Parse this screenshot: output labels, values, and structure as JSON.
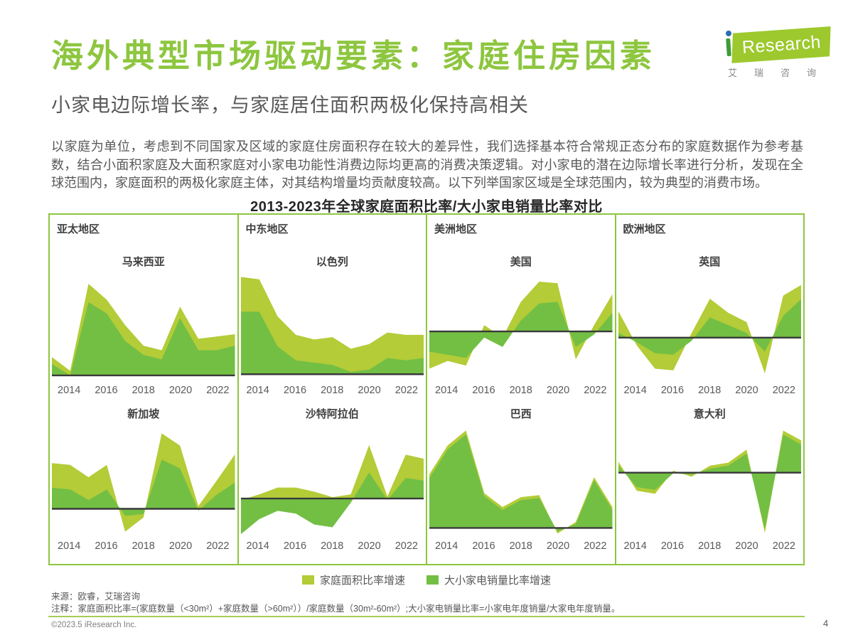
{
  "page": {
    "title": "海外典型市场驱动要素：家庭住房因素",
    "subtitle": "小家电边际增长率，与家庭居住面积两极化保持高相关",
    "paragraph": "以家庭为单位，考虑到不同国家及区域的家庭住房面积存在较大的差异性，我们选择基本符合常规正态分布的家庭数据作为参考基数，结合小面积家庭及大面积家庭对小家电功能性消费边际均更高的消费决策逻辑。对小家电的潜在边际增长率进行分析，发现在全球范围内，家庭面积的两极化家庭主体，对其结构增量均贡献度较高。以下列举国家区域是全球范围内，较为典型的消费市场。",
    "page_number": "4",
    "copyright": "©2023.5 iResearch Inc."
  },
  "logo": {
    "brand": "Research",
    "cn": "艾瑞咨询"
  },
  "colors": {
    "accent_green": "#8dc63f",
    "light_series": "#b3cc37",
    "dark_series": "#72bf44",
    "baseline": "#3a3a3a",
    "text_dark": "#404042",
    "text_gray": "#595757"
  },
  "footer": {
    "source": "来源：欧睿，艾瑞咨询",
    "note": "注释：家庭面积比率=(家庭数量（<30m²）+家庭数量（>60m²））/家庭数量（30m²-60m²）;大小家电销量比率=小家电年度销量/大家电年度销量。"
  },
  "chart_data": {
    "type": "area",
    "title": "2013-2023年全球家庭面积比率/大小家电销量比率对比",
    "x": [
      2013,
      2014,
      2015,
      2016,
      2017,
      2018,
      2019,
      2020,
      2021,
      2022,
      2023
    ],
    "x_tick_labels": [
      "2014",
      "2016",
      "2018",
      "2020",
      "2022"
    ],
    "grid": false,
    "legend_position": "bottom-center",
    "baseline_value": 0,
    "legend": [
      {
        "label": "家庭面积比率增速",
        "color": "#b3cc37"
      },
      {
        "label": "大小家电销量比率增速",
        "color": "#72bf44"
      }
    ],
    "regions": [
      {
        "name": "亚太地区",
        "charts": [
          {
            "country": "马来西亚",
            "ylim": [
              -2.5,
              45
            ],
            "series": [
              {
                "name": "家庭面积比率增速",
                "values": [
                  8,
                  2,
                  40,
                  33,
                  22,
                  13,
                  11,
                  30,
                  16,
                  17,
                  18
                ]
              },
              {
                "name": "大小家电销量比率增速",
                "values": [
                  5,
                  0,
                  32,
                  27,
                  15,
                  9,
                  7,
                  25,
                  11,
                  11,
                  13
                ]
              }
            ]
          },
          {
            "country": "新加坡",
            "ylim": [
              -1.6,
              4.8
            ],
            "series": [
              {
                "name": "家庭面积比率增速",
                "values": [
                  2.6,
                  2.5,
                  1.8,
                  2.5,
                  -1.3,
                  -0.5,
                  4.3,
                  3.6,
                  0.15,
                  1.6,
                  3.1
                ]
              },
              {
                "name": "大小家电销量比率增速",
                "values": [
                  1.2,
                  1.1,
                  0.5,
                  1.1,
                  -0.4,
                  -0.3,
                  2.8,
                  2.3,
                  -0.1,
                  0.8,
                  1.5
                ]
              }
            ]
          }
        ]
      },
      {
        "name": "中东地区",
        "charts": [
          {
            "country": "以色列",
            "ylim": [
              -3,
              44
            ],
            "series": [
              {
                "name": "家庭面积比率增速",
                "values": [
                  42,
                  41,
                  25,
                  17,
                  15,
                  16,
                  11,
                  13,
                  18,
                  17,
                  17
                ]
              },
              {
                "name": "大小家电销量比率增速",
                "values": [
                  27,
                  27,
                  12,
                  6,
                  5,
                  4,
                  1,
                  2,
                  7,
                  6,
                  7
                ]
              }
            ]
          },
          {
            "country": "沙特阿拉伯",
            "ylim": [
              -2.8,
              5.4
            ],
            "series": [
              {
                "name": "家庭面积比率增速",
                "values": [
                  -0.1,
                  0.3,
                  0.8,
                  0.8,
                  0.5,
                  0.1,
                  0.3,
                  3.9,
                  0.15,
                  3.2,
                  2.9
                ]
              },
              {
                "name": "大小家电销量比率增速",
                "values": [
                  -2.6,
                  -1.5,
                  -0.9,
                  -1.1,
                  -1.9,
                  -2.1,
                  -0.3,
                  1.9,
                  -0.1,
                  1.5,
                  1.3
                ]
              }
            ]
          }
        ]
      },
      {
        "name": "美洲地区",
        "charts": [
          {
            "country": "美国",
            "ylim": [
              -3.2,
              3.8
            ],
            "series": [
              {
                "name": "家庭面积比率增速",
                "values": [
                  -2.4,
                  -1.9,
                  -2.2,
                  0.4,
                  -0.4,
                  1.9,
                  3.2,
                  3.1,
                  -1.8,
                  0.4,
                  2.4
                ]
              },
              {
                "name": "大小家电销量比率增速",
                "values": [
                  -1.3,
                  -1.5,
                  -1.7,
                  -0.4,
                  -1.0,
                  0.7,
                  1.8,
                  1.9,
                  -1.0,
                  -0.2,
                  1.2
                ]
              }
            ]
          },
          {
            "country": "巴西",
            "ylim": [
              -0.45,
              5.2
            ],
            "series": [
              {
                "name": "家庭面积比率增速",
                "values": [
                  2.7,
                  4.15,
                  4.9,
                  1.75,
                  1.05,
                  1.55,
                  1.65,
                  -0.28,
                  0.3,
                  2.55,
                  1.05
                ]
              },
              {
                "name": "大小家电销量比率增速",
                "values": [
                  2.5,
                  3.95,
                  4.7,
                  1.6,
                  0.9,
                  1.4,
                  1.5,
                  -0.18,
                  0.2,
                  2.4,
                  0.9
                ]
              }
            ]
          }
        ]
      },
      {
        "name": "欧洲地区",
        "charts": [
          {
            "country": "英国",
            "ylim": [
              -2.8,
              4.2
            ],
            "series": [
              {
                "name": "家庭面积比率增速",
                "values": [
                  1.7,
                  -0.5,
                  -2.0,
                  -2.1,
                  0.3,
                  2.5,
                  1.6,
                  1.0,
                  -2.3,
                  2.7,
                  3.4
                ]
              },
              {
                "name": "大小家电销量比率增速",
                "values": [
                  0.3,
                  -0.3,
                  -1.0,
                  -1.1,
                  -0.2,
                  1.3,
                  0.8,
                  0.3,
                  -0.9,
                  1.4,
                  2.5
                ]
              }
            ]
          },
          {
            "country": "意大利",
            "ylim": [
              -3.2,
              2.4
            ],
            "series": [
              {
                "name": "家庭面积比率增速",
                "values": [
                  0.55,
                  -0.9,
                  -1.05,
                  0.1,
                  -0.2,
                  0.35,
                  0.5,
                  1.15,
                  -3.0,
                  2.1,
                  1.6
                ]
              },
              {
                "name": "大小家电销量比率增速",
                "values": [
                  0.35,
                  -0.72,
                  -0.85,
                  -0.03,
                  -0.1,
                  0.2,
                  0.35,
                  0.95,
                  -2.82,
                  1.9,
                  1.4
                ]
              }
            ]
          }
        ]
      }
    ]
  }
}
